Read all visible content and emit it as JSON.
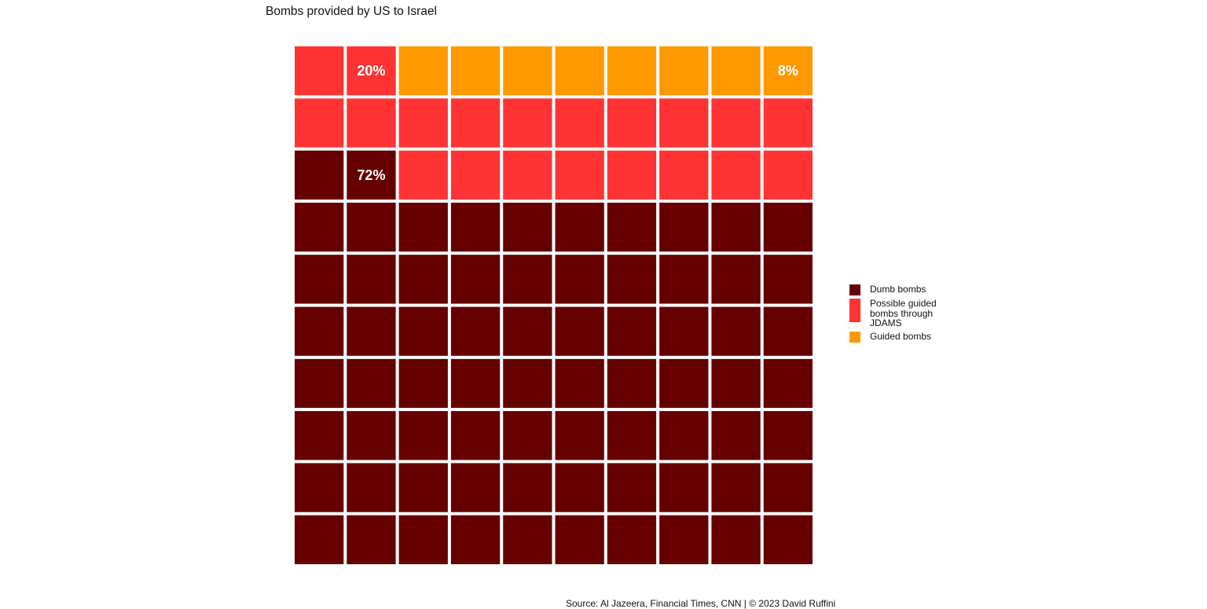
{
  "chart_data": {
    "type": "waffle",
    "title": "Bombs provided by US to Israel",
    "grid": {
      "rows": 10,
      "cols": 10
    },
    "categories": [
      "Dumb bombs",
      "Possible guided bombs through JDAMS",
      "Guided bombs"
    ],
    "values": [
      72,
      20,
      8
    ],
    "series": [
      {
        "name": "Dumb bombs",
        "value": 72,
        "label": "72%",
        "color": "#660000"
      },
      {
        "name": "Possible guided bombs through JDAMS",
        "value": 20,
        "label": "20%",
        "color": "#ff3333"
      },
      {
        "name": "Guided bombs",
        "value": 8,
        "label": "8%",
        "color": "#ff9900"
      }
    ],
    "legend_position": "right"
  },
  "legend": {
    "items": [
      {
        "label": "Dumb bombs",
        "color": "#660000"
      },
      {
        "label": "Possible guided bombs through JDAMS",
        "color": "#ff3333"
      },
      {
        "label": "Guided bombs",
        "color": "#ff9900"
      }
    ]
  },
  "source": "Source: Al Jazeera, Financial Times, CNN | © 2023 David Ruffini"
}
